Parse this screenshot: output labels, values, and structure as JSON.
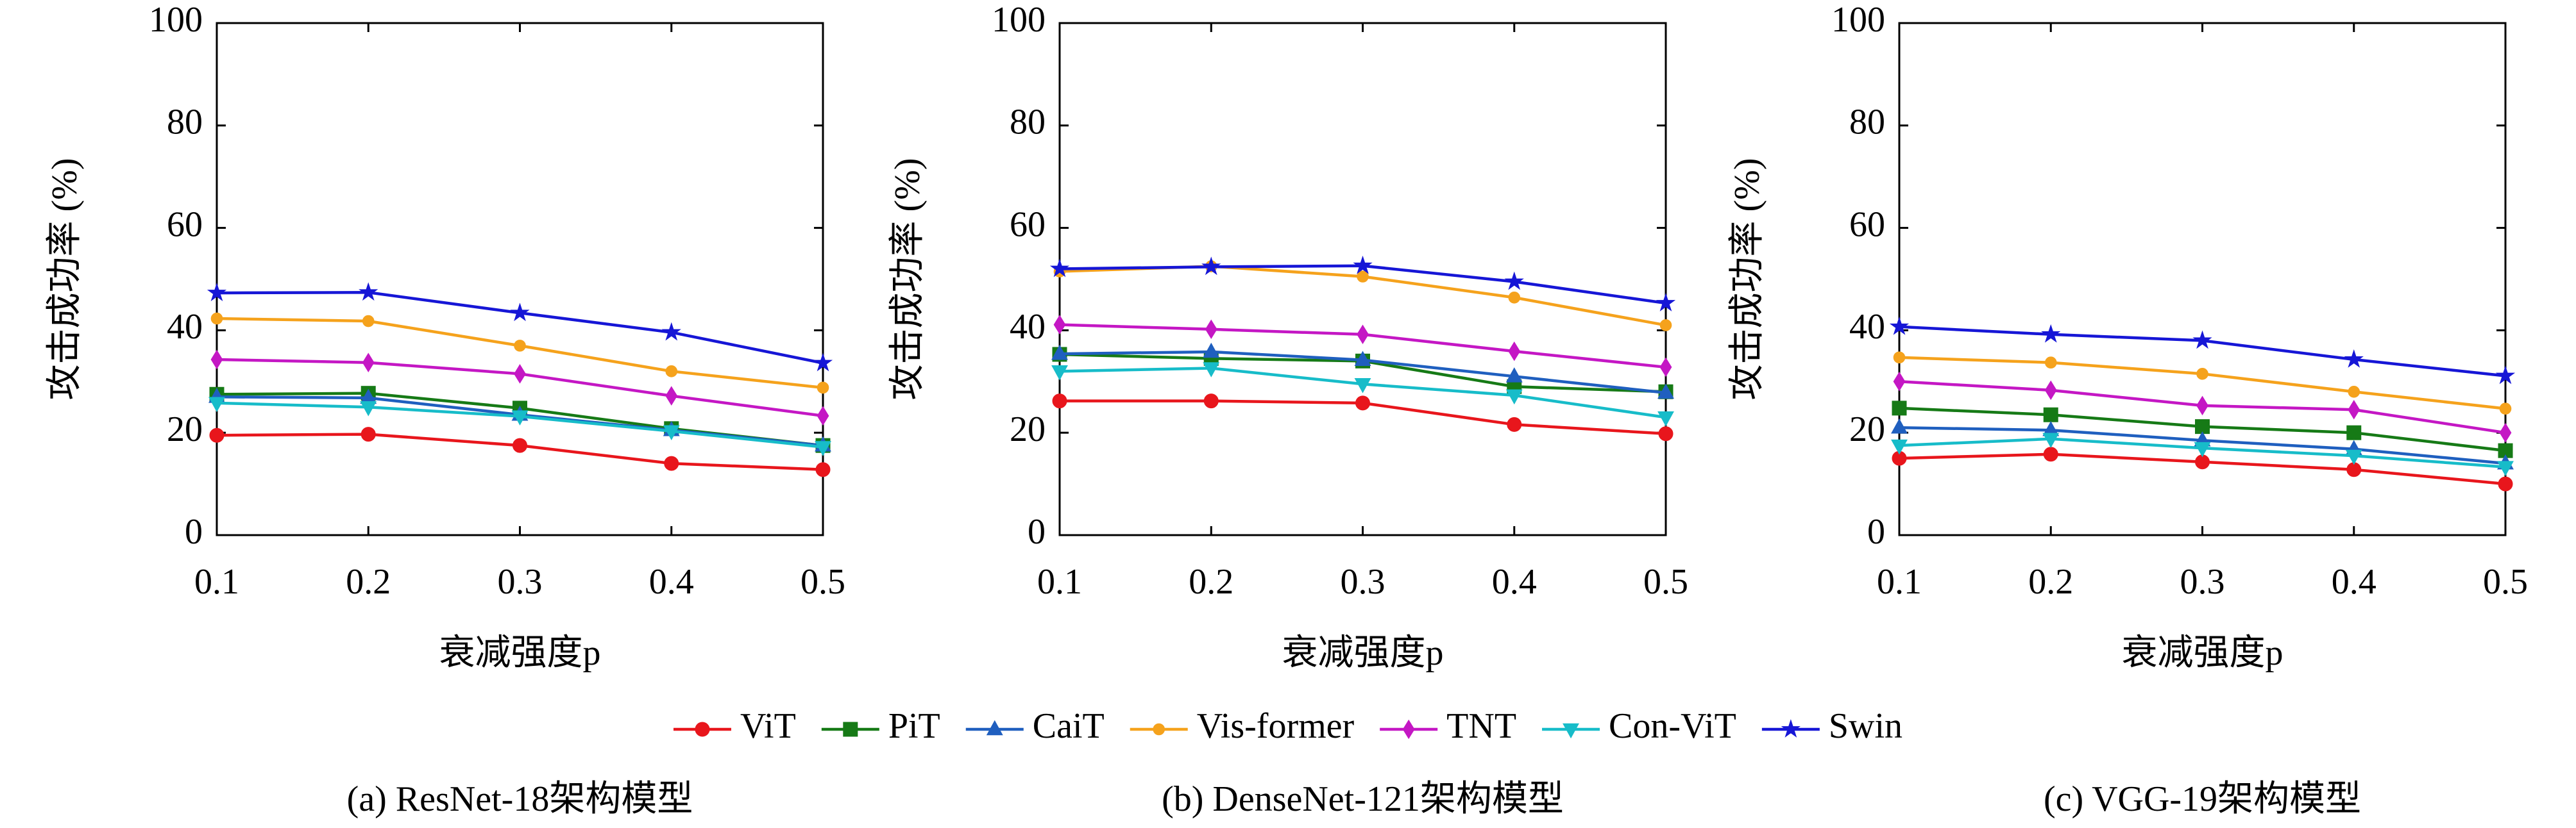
{
  "legend": [
    {
      "name": "ViT",
      "color": "#e8161c",
      "marker": "circle"
    },
    {
      "name": "PiT",
      "color": "#167a16",
      "marker": "square"
    },
    {
      "name": "CaiT",
      "color": "#1f5fbf",
      "marker": "triangle-up"
    },
    {
      "name": "Vis-former",
      "color": "#f5a21c",
      "marker": "dot"
    },
    {
      "name": "TNT",
      "color": "#c417c4",
      "marker": "diamond"
    },
    {
      "name": "Con-ViT",
      "color": "#17bcc9",
      "marker": "triangle-down"
    },
    {
      "name": "Swin",
      "color": "#1616d6",
      "marker": "star"
    }
  ],
  "chart_data": [
    {
      "type": "line",
      "caption": "(a) ResNet-18架构模型",
      "xlabel": "衰减强度p",
      "ylabel": "攻击成功率 (%)",
      "x": [
        0.1,
        0.2,
        0.3,
        0.4,
        0.5
      ],
      "xlim": [
        0.1,
        0.5
      ],
      "xticks": [
        0.1,
        0.2,
        0.3,
        0.4,
        0.5
      ],
      "ylim": [
        0,
        100
      ],
      "yticks": [
        0,
        20,
        40,
        60,
        80,
        100
      ],
      "series": [
        {
          "values": [
            19.5,
            19.7,
            17.5,
            14,
            12.8
          ]
        },
        {
          "values": [
            27.5,
            27.7,
            24.8,
            20.8,
            17.5
          ]
        },
        {
          "values": [
            27,
            26.8,
            23.5,
            20.5,
            17.5
          ]
        },
        {
          "values": [
            42.3,
            41.8,
            37,
            32,
            28.8
          ]
        },
        {
          "values": [
            34.3,
            33.7,
            31.5,
            27.2,
            23.3
          ]
        },
        {
          "values": [
            25.8,
            25,
            23.2,
            20.3,
            17.2
          ]
        },
        {
          "values": [
            47.3,
            47.4,
            43.4,
            39.6,
            33.6
          ]
        }
      ]
    },
    {
      "type": "line",
      "caption": "(b) DenseNet-121架构模型",
      "xlabel": "衰减强度p",
      "ylabel": "攻击成功率 (%)",
      "x": [
        0.1,
        0.2,
        0.3,
        0.4,
        0.5
      ],
      "xlim": [
        0.1,
        0.5
      ],
      "xticks": [
        0.1,
        0.2,
        0.3,
        0.4,
        0.5
      ],
      "ylim": [
        0,
        100
      ],
      "yticks": [
        0,
        20,
        40,
        60,
        80,
        100
      ],
      "series": [
        {
          "values": [
            26.2,
            26.2,
            25.8,
            21.6,
            19.8
          ]
        },
        {
          "values": [
            35.3,
            34.5,
            34,
            29,
            28
          ]
        },
        {
          "values": [
            35.4,
            35.8,
            34.2,
            31,
            27.8
          ]
        },
        {
          "values": [
            51.5,
            52.5,
            50.5,
            46.4,
            41
          ]
        },
        {
          "values": [
            41.1,
            40.2,
            39.2,
            35.9,
            32.8
          ]
        },
        {
          "values": [
            32,
            32.6,
            29.5,
            27.3,
            23
          ]
        },
        {
          "values": [
            52,
            52.4,
            52.6,
            49.5,
            45.3
          ]
        }
      ]
    },
    {
      "type": "line",
      "caption": "(c) VGG-19架构模型",
      "xlabel": "衰减强度p",
      "ylabel": "攻击成功率 (%)",
      "x": [
        0.1,
        0.2,
        0.3,
        0.4,
        0.5
      ],
      "xlim": [
        0.1,
        0.5
      ],
      "xticks": [
        0.1,
        0.2,
        0.3,
        0.4,
        0.5
      ],
      "ylim": [
        0,
        100
      ],
      "yticks": [
        0,
        20,
        40,
        60,
        80,
        100
      ],
      "series": [
        {
          "values": [
            15,
            15.8,
            14.3,
            12.8,
            10
          ]
        },
        {
          "values": [
            24.8,
            23.5,
            21.2,
            20,
            16.5
          ]
        },
        {
          "values": [
            21,
            20.5,
            18.5,
            16.8,
            14
          ]
        },
        {
          "values": [
            34.7,
            33.7,
            31.5,
            28,
            24.7
          ]
        },
        {
          "values": [
            30,
            28.3,
            25.3,
            24.5,
            20
          ]
        },
        {
          "values": [
            17.5,
            18.8,
            17,
            15.5,
            13.3
          ]
        },
        {
          "values": [
            40.7,
            39.2,
            38,
            34.3,
            31.1
          ]
        }
      ]
    }
  ]
}
